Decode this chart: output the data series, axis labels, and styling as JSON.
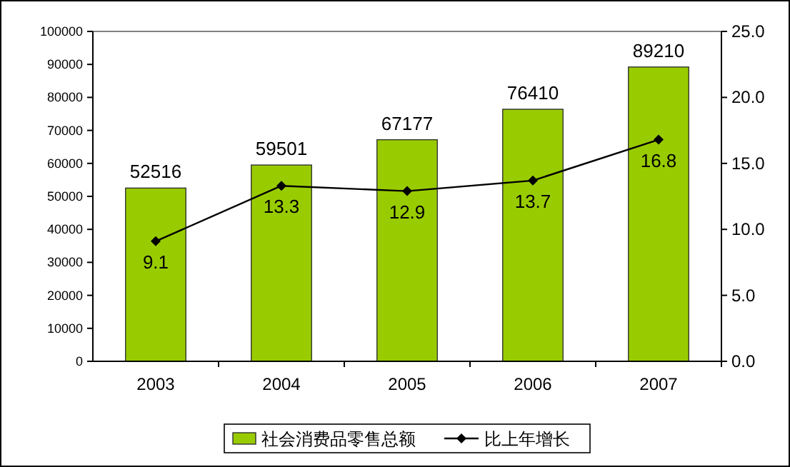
{
  "chart_data": {
    "type": "bar",
    "categories": [
      "2003",
      "2004",
      "2005",
      "2006",
      "2007"
    ],
    "series": [
      {
        "name": "社会消费品零售总额",
        "color": "#99cc00",
        "values": [
          52516,
          59501,
          67177,
          76410,
          89210
        ]
      },
      {
        "name": "比上年增长",
        "type": "line",
        "axis": "y2",
        "color": "#000000",
        "marker": "diamond",
        "values": [
          9.1,
          13.3,
          12.9,
          13.7,
          16.8
        ]
      }
    ],
    "ylim": [
      0,
      100000
    ],
    "yticks": [
      0,
      10000,
      20000,
      30000,
      40000,
      50000,
      60000,
      70000,
      80000,
      90000,
      100000
    ],
    "y2lim": [
      0,
      25
    ],
    "y2ticks": [
      {
        "value": 0,
        "label": "0.0"
      },
      {
        "value": 5,
        "label": "5.0"
      },
      {
        "value": 10,
        "label": "10.0"
      },
      {
        "value": 15,
        "label": "15.0"
      },
      {
        "value": 20,
        "label": "20.0"
      },
      {
        "value": 25,
        "label": "25.0"
      }
    ],
    "data_labels": true,
    "legend": "bottom",
    "grid": false
  }
}
